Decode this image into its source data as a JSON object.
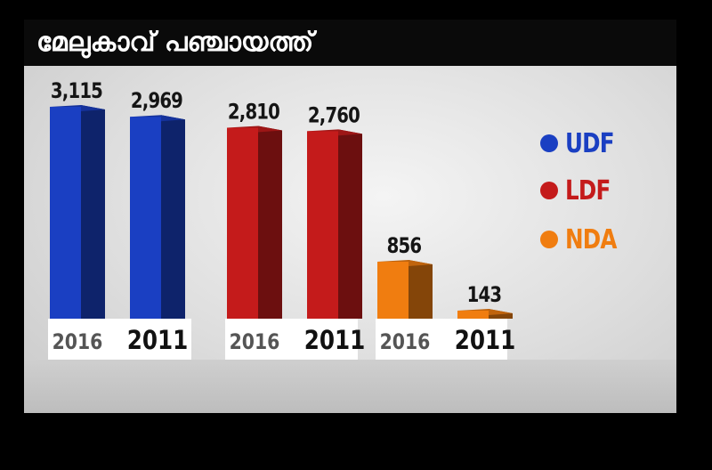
{
  "title": "മേലുകാവ് പഞ്ചായത്ത്",
  "colors": {
    "UDF": "#1a3fc2",
    "LDF": "#c41b1b",
    "NDA": "#f07d10"
  },
  "chart_data": {
    "type": "bar",
    "title": "മേലുകാവ് പഞ്ചായത്ത്",
    "groups": [
      "UDF",
      "LDF",
      "NDA"
    ],
    "categories": [
      "2016",
      "2011"
    ],
    "series": [
      {
        "name": "UDF",
        "values": [
          3115,
          2969
        ],
        "labels": [
          "3,115",
          "2,969"
        ]
      },
      {
        "name": "LDF",
        "values": [
          2810,
          2760
        ],
        "labels": [
          "2,810",
          "2,760"
        ]
      },
      {
        "name": "NDA",
        "values": [
          856,
          143
        ],
        "labels": [
          "856",
          "143"
        ]
      }
    ],
    "legend": {
      "entries": [
        "UDF",
        "LDF",
        "NDA"
      ],
      "position": "right"
    },
    "ylim": [
      0,
      3115
    ],
    "grid": false
  }
}
